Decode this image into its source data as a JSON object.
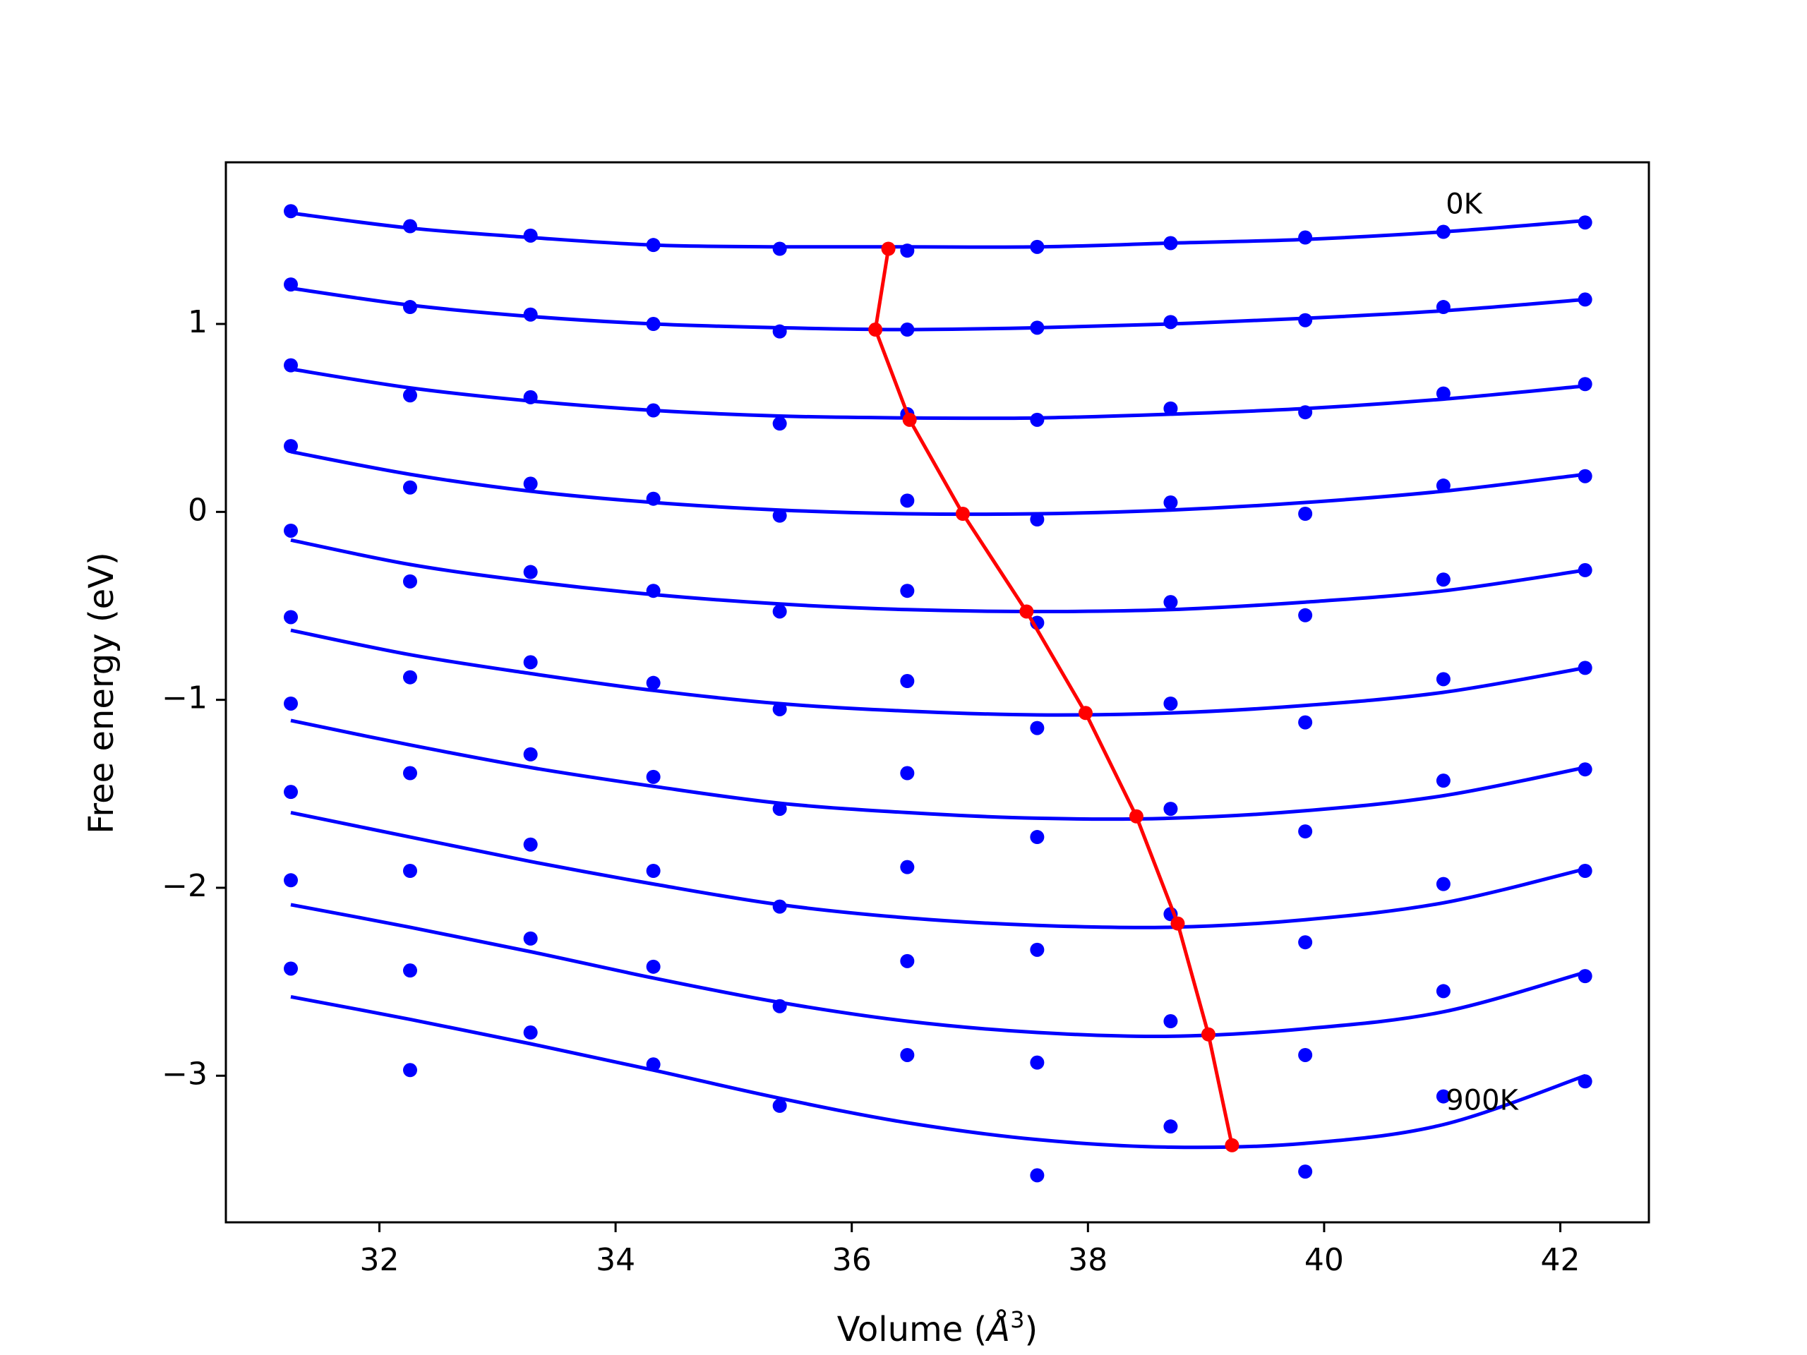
{
  "chart_data": {
    "type": "scatter",
    "title": "",
    "xlabel": "Volume (",
    "xlabel_unit": "Å",
    "xlabel_exp": "3",
    "xlabel_close": ")",
    "ylabel": "Free energy (eV)",
    "xlim": [
      30.7,
      42.75
    ],
    "ylim": [
      -3.78,
      1.86
    ],
    "xticks": [
      32,
      34,
      36,
      38,
      40,
      42
    ],
    "xtick_labels": [
      "32",
      "34",
      "36",
      "38",
      "40",
      "42"
    ],
    "yticks": [
      -3,
      -2,
      -1,
      0,
      1
    ],
    "ytick_labels": [
      "−3",
      "−2",
      "−1",
      "0",
      "1"
    ],
    "grid": false,
    "volumes": [
      31.25,
      32.26,
      33.28,
      34.32,
      35.39,
      36.47,
      37.57,
      38.7,
      39.84,
      41.01,
      42.21
    ],
    "series": [
      {
        "points": [
          1.6,
          1.52,
          1.47,
          1.42,
          1.4,
          1.39,
          1.41,
          1.43,
          1.46,
          1.49,
          1.54
        ],
        "fit": [
          1.59,
          1.51,
          1.46,
          1.42,
          1.41,
          1.41,
          1.41,
          1.43,
          1.45,
          1.49,
          1.55
        ]
      },
      {
        "points": [
          1.21,
          1.09,
          1.05,
          1.0,
          0.96,
          0.97,
          0.98,
          1.01,
          1.02,
          1.09,
          1.13
        ],
        "fit": [
          1.19,
          1.1,
          1.04,
          1.0,
          0.98,
          0.97,
          0.98,
          1.0,
          1.03,
          1.07,
          1.13
        ]
      },
      {
        "points": [
          0.78,
          0.62,
          0.61,
          0.54,
          0.47,
          0.52,
          0.49,
          0.55,
          0.53,
          0.63,
          0.68
        ],
        "fit": [
          0.76,
          0.66,
          0.59,
          0.54,
          0.51,
          0.5,
          0.5,
          0.52,
          0.55,
          0.6,
          0.67
        ]
      },
      {
        "points": [
          0.35,
          0.13,
          0.15,
          0.07,
          -0.02,
          0.06,
          -0.04,
          0.05,
          -0.01,
          0.14,
          0.19
        ],
        "fit": [
          0.32,
          0.2,
          0.11,
          0.05,
          0.01,
          -0.01,
          -0.01,
          0.01,
          0.05,
          0.11,
          0.2
        ]
      },
      {
        "points": [
          -0.1,
          -0.37,
          -0.32,
          -0.42,
          -0.53,
          -0.42,
          -0.59,
          -0.48,
          -0.55,
          -0.36,
          -0.31
        ],
        "fit": [
          -0.15,
          -0.28,
          -0.37,
          -0.44,
          -0.49,
          -0.52,
          -0.53,
          -0.52,
          -0.48,
          -0.42,
          -0.31
        ]
      },
      {
        "points": [
          -0.56,
          -0.88,
          -0.8,
          -0.91,
          -1.05,
          -0.9,
          -1.15,
          -1.02,
          -1.12,
          -0.89,
          -0.83
        ],
        "fit": [
          -0.63,
          -0.76,
          -0.86,
          -0.95,
          -1.02,
          -1.06,
          -1.08,
          -1.07,
          -1.03,
          -0.96,
          -0.83
        ]
      },
      {
        "points": [
          -1.02,
          -1.39,
          -1.29,
          -1.41,
          -1.58,
          -1.39,
          -1.73,
          -1.58,
          -1.7,
          -1.43,
          -1.37
        ],
        "fit": [
          -1.11,
          -1.24,
          -1.36,
          -1.46,
          -1.55,
          -1.6,
          -1.63,
          -1.63,
          -1.59,
          -1.51,
          -1.36
        ]
      },
      {
        "points": [
          -1.49,
          -1.91,
          -1.77,
          -1.91,
          -2.1,
          -1.89,
          -2.33,
          -2.14,
          -2.29,
          -1.98,
          -1.91
        ],
        "fit": [
          -1.6,
          -1.73,
          -1.86,
          -1.98,
          -2.09,
          -2.16,
          -2.2,
          -2.21,
          -2.17,
          -2.08,
          -1.9
        ]
      },
      {
        "points": [
          -1.96,
          -2.44,
          -2.27,
          -2.42,
          -2.63,
          -2.39,
          -2.93,
          -2.71,
          -2.89,
          -2.55,
          -2.47
        ],
        "fit": [
          -2.09,
          -2.21,
          -2.34,
          -2.48,
          -2.61,
          -2.71,
          -2.77,
          -2.79,
          -2.75,
          -2.66,
          -2.45
        ]
      },
      {
        "points": [
          -2.43,
          -2.97,
          -2.77,
          -2.94,
          -3.16,
          -2.89,
          -3.53,
          -3.27,
          -3.51,
          -3.11,
          -3.03
        ],
        "fit": [
          -2.58,
          -2.7,
          -2.83,
          -2.97,
          -3.12,
          -3.25,
          -3.34,
          -3.38,
          -3.36,
          -3.26,
          -3.0
        ]
      }
    ],
    "minima": {
      "x": [
        36.31,
        36.2,
        36.49,
        36.94,
        37.48,
        37.98,
        38.41,
        38.76,
        39.02,
        39.22
      ],
      "y": [
        1.4,
        0.97,
        0.49,
        -0.01,
        -0.53,
        -1.07,
        -1.62,
        -2.19,
        -2.78,
        -3.37
      ]
    },
    "annotations": [
      {
        "text": "0K",
        "x": 41.03,
        "y": 1.63
      },
      {
        "text": "900K",
        "x": 41.03,
        "y": -3.14
      }
    ],
    "colors": {
      "points": "#0000ff",
      "fit": "#0000ff",
      "minima": "#ff0000",
      "axes": "#000000"
    }
  }
}
